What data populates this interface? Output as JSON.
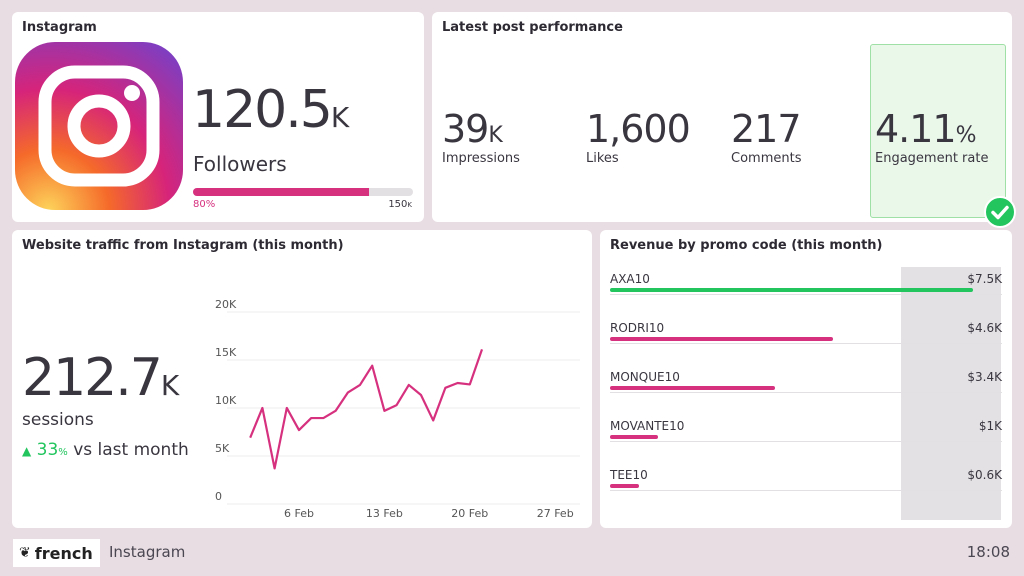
{
  "instagram": {
    "title": "Instagram",
    "followers_value": "120.5",
    "followers_unit": "K",
    "followers_label": "Followers",
    "progress_percent": 80,
    "progress_label": "80%",
    "goal_label": "150",
    "goal_unit": "K"
  },
  "latest": {
    "title": "Latest post performance",
    "metrics": [
      {
        "value": "39",
        "unit": "K",
        "label": "Impressions"
      },
      {
        "value": "1,600",
        "unit": "",
        "label": "Likes"
      },
      {
        "value": "217",
        "unit": "",
        "label": "Comments"
      },
      {
        "value": "4.11",
        "unit": "%",
        "label": "Engagement rate",
        "status": "check-icon"
      }
    ]
  },
  "traffic": {
    "title": "Website traffic from Instagram (this month)",
    "sessions_value": "212.7",
    "sessions_unit": "K",
    "sessions_label": "sessions",
    "change_value": "33",
    "change_unit": "%",
    "change_label": "vs last month",
    "change_color": "#22c55e"
  },
  "chart_data": {
    "type": "line",
    "x": [
      "2 Feb",
      "3 Feb",
      "4 Feb",
      "5 Feb",
      "6 Feb",
      "7 Feb",
      "8 Feb",
      "9 Feb",
      "10 Feb",
      "11 Feb",
      "12 Feb",
      "13 Feb",
      "14 Feb",
      "15 Feb",
      "16 Feb",
      "17 Feb",
      "18 Feb",
      "19 Feb",
      "20 Feb",
      "21 Feb"
    ],
    "values": [
      6800,
      9900,
      3600,
      9900,
      7600,
      8850,
      8850,
      9600,
      11500,
      12300,
      14300,
      9600,
      10200,
      12300,
      11250,
      8600,
      12000,
      12500,
      12350,
      16000
    ],
    "ylim": [
      0,
      20000
    ],
    "yticks": [
      "0",
      "5K",
      "10K",
      "15K",
      "20K"
    ],
    "xticks": [
      "6 Feb",
      "13 Feb",
      "20 Feb",
      "27 Feb"
    ],
    "grid": true,
    "color": "#d6317f"
  },
  "revenue": {
    "title": "Revenue by promo code (this month)",
    "items": [
      {
        "code": "AXA10",
        "amount": "$7.5K",
        "value": 7.5,
        "color": "#22c55e"
      },
      {
        "code": "RODRI10",
        "amount": "$4.6K",
        "value": 4.6,
        "color": "#d6317f"
      },
      {
        "code": "MONQUE10",
        "amount": "$3.4K",
        "value": 3.4,
        "color": "#d6317f"
      },
      {
        "code": "MOVANTE10",
        "amount": "$1K",
        "value": 1,
        "color": "#d6317f"
      },
      {
        "code": "TEE10",
        "amount": "$0.6K",
        "value": 0.6,
        "color": "#d6317f"
      }
    ]
  },
  "footer": {
    "brand": "french",
    "app": "Instagram",
    "time": "18:08"
  }
}
